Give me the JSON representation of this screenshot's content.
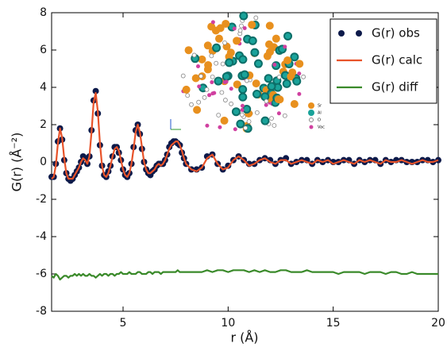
{
  "chart_data": {
    "type": "line",
    "xlabel": "r (Å)",
    "ylabel": "G(r) (Å⁻²)",
    "xlim": [
      1.6,
      20
    ],
    "ylim": [
      -8,
      8
    ],
    "xticks": [
      5,
      10,
      15,
      20
    ],
    "yticks": [
      -8,
      -6,
      -4,
      -2,
      0,
      2,
      4,
      6,
      8
    ],
    "legend": "upper right",
    "inset_labels": [
      "Sr",
      "Al",
      "O",
      "Vac"
    ],
    "x": [
      1.6,
      1.7,
      1.8,
      1.9,
      2.0,
      2.1,
      2.2,
      2.3,
      2.4,
      2.5,
      2.6,
      2.7,
      2.8,
      2.9,
      3.0,
      3.1,
      3.2,
      3.3,
      3.4,
      3.5,
      3.6,
      3.7,
      3.8,
      3.9,
      4.0,
      4.1,
      4.2,
      4.3,
      4.4,
      4.5,
      4.6,
      4.7,
      4.8,
      4.9,
      5.0,
      5.1,
      5.2,
      5.3,
      5.4,
      5.5,
      5.6,
      5.7,
      5.8,
      5.9,
      6.0,
      6.1,
      6.2,
      6.3,
      6.4,
      6.5,
      6.6,
      6.7,
      6.8,
      6.9,
      7.0,
      7.1,
      7.2,
      7.3,
      7.4,
      7.5,
      7.6,
      7.7,
      7.8,
      7.9,
      8.0,
      8.25,
      8.5,
      8.75,
      9.0,
      9.25,
      9.5,
      9.75,
      10.0,
      10.25,
      10.5,
      10.75,
      11.0,
      11.25,
      11.5,
      11.75,
      12.0,
      12.25,
      12.5,
      12.75,
      13.0,
      13.25,
      13.5,
      13.75,
      14.0,
      14.25,
      14.5,
      14.75,
      15.0,
      15.25,
      15.5,
      15.75,
      16.0,
      16.25,
      16.5,
      16.75,
      17.0,
      17.25,
      17.5,
      17.75,
      18.0,
      18.25,
      18.5,
      18.75,
      19.0,
      19.25,
      19.5,
      19.75,
      20.0
    ],
    "series": [
      {
        "name": "G(r) obs",
        "color": "#0d1a4a",
        "style": "markers",
        "values": [
          -0.8,
          -0.8,
          -0.1,
          1.1,
          1.8,
          1.2,
          0.1,
          -0.6,
          -0.9,
          -1.0,
          -0.9,
          -0.7,
          -0.5,
          -0.3,
          0.0,
          0.3,
          0.2,
          -0.1,
          0.3,
          1.7,
          3.3,
          3.8,
          2.6,
          0.9,
          -0.2,
          -0.7,
          -0.8,
          -0.5,
          -0.2,
          0.3,
          0.8,
          0.8,
          0.5,
          0.1,
          -0.4,
          -0.7,
          -0.8,
          -0.6,
          -0.1,
          0.8,
          1.7,
          2.0,
          1.5,
          0.7,
          0.0,
          -0.4,
          -0.6,
          -0.7,
          -0.5,
          -0.4,
          -0.2,
          -0.1,
          -0.1,
          -0.1,
          0.1,
          0.4,
          0.8,
          1.0,
          1.1,
          1.1,
          1.0,
          0.9,
          0.5,
          0.2,
          -0.1,
          -0.4,
          -0.4,
          -0.3,
          0.3,
          0.4,
          -0.1,
          -0.4,
          -0.2,
          0.1,
          0.3,
          0.1,
          -0.1,
          -0.1,
          0.1,
          0.2,
          0.1,
          -0.1,
          0.1,
          0.2,
          -0.1,
          0.0,
          0.1,
          0.1,
          -0.1,
          0.1,
          0.0,
          0.1,
          0.0,
          0.0,
          0.1,
          0.1,
          -0.1,
          0.1,
          0.0,
          0.1,
          0.1,
          -0.1,
          0.1,
          0.0,
          0.1,
          0.1,
          0.0,
          0.0,
          0.0,
          0.1,
          0.1,
          0.0,
          0.1
        ]
      },
      {
        "name": "G(r) calc",
        "color": "#e8532a",
        "style": "line",
        "values": [
          -0.9,
          -0.8,
          -0.2,
          1.0,
          1.8,
          1.3,
          0.2,
          -0.6,
          -0.9,
          -0.9,
          -0.9,
          -0.7,
          -0.5,
          -0.3,
          0.0,
          0.2,
          0.1,
          -0.1,
          0.3,
          1.6,
          3.2,
          3.7,
          2.7,
          1.0,
          -0.2,
          -0.7,
          -0.8,
          -0.6,
          -0.2,
          0.3,
          0.7,
          0.8,
          0.6,
          0.1,
          -0.4,
          -0.7,
          -0.8,
          -0.6,
          -0.1,
          0.7,
          1.6,
          2.0,
          1.6,
          0.8,
          0.0,
          -0.4,
          -0.6,
          -0.6,
          -0.5,
          -0.4,
          -0.2,
          -0.1,
          -0.2,
          -0.1,
          0.1,
          0.4,
          0.7,
          0.9,
          1.0,
          1.1,
          1.1,
          0.9,
          0.6,
          0.2,
          -0.1,
          -0.4,
          -0.5,
          -0.3,
          0.2,
          0.4,
          -0.1,
          -0.4,
          -0.3,
          0.1,
          0.3,
          0.1,
          -0.2,
          -0.1,
          0.1,
          0.2,
          0.0,
          -0.1,
          0.1,
          0.1,
          -0.1,
          0.0,
          0.1,
          0.0,
          -0.1,
          0.1,
          0.0,
          0.1,
          -0.1,
          0.0,
          0.1,
          0.0,
          -0.1,
          0.1,
          0.0,
          0.1,
          0.0,
          -0.1,
          0.1,
          0.0,
          0.0,
          0.1,
          0.0,
          -0.1,
          0.0,
          0.1,
          0.0,
          0.0,
          0.1
        ]
      },
      {
        "name": "G(r) diff",
        "color": "#3a8a2a",
        "style": "line",
        "values": [
          -6.1,
          -6.2,
          -6.0,
          -6.1,
          -6.3,
          -6.2,
          -6.1,
          -6.1,
          -6.2,
          -6.1,
          -6.1,
          -6.0,
          -6.1,
          -6.0,
          -6.1,
          -6.0,
          -6.1,
          -6.1,
          -6.0,
          -6.1,
          -6.1,
          -6.2,
          -6.1,
          -6.0,
          -6.1,
          -6.0,
          -6.0,
          -6.1,
          -6.0,
          -6.0,
          -6.1,
          -6.0,
          -6.0,
          -5.9,
          -6.0,
          -6.0,
          -6.0,
          -5.9,
          -6.0,
          -6.0,
          -6.0,
          -5.9,
          -5.9,
          -6.0,
          -6.0,
          -6.0,
          -5.9,
          -5.9,
          -6.0,
          -5.9,
          -5.9,
          -5.9,
          -6.0,
          -5.9,
          -5.9,
          -5.9,
          -5.9,
          -5.9,
          -5.9,
          -5.9,
          -5.8,
          -5.9,
          -5.9,
          -5.9,
          -5.9,
          -5.9,
          -5.9,
          -5.9,
          -5.8,
          -5.9,
          -5.8,
          -5.8,
          -5.9,
          -5.8,
          -5.8,
          -5.8,
          -5.9,
          -5.8,
          -5.9,
          -5.8,
          -5.9,
          -5.9,
          -5.8,
          -5.8,
          -5.9,
          -5.9,
          -5.9,
          -5.8,
          -5.9,
          -5.9,
          -5.9,
          -5.9,
          -5.9,
          -6.0,
          -5.9,
          -5.9,
          -5.9,
          -5.9,
          -6.0,
          -5.9,
          -5.9,
          -5.9,
          -6.0,
          -5.9,
          -5.9,
          -6.0,
          -6.0,
          -5.9,
          -6.0,
          -6.0,
          -6.0,
          -6.0,
          -6.0
        ]
      }
    ]
  }
}
